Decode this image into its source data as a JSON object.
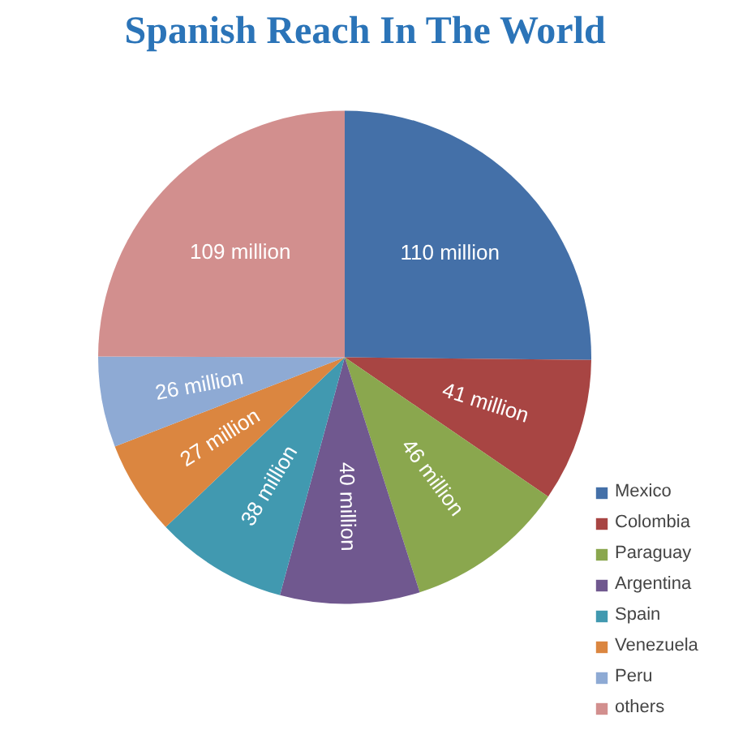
{
  "chart_data": {
    "type": "pie",
    "title": "Spanish Reach In The World",
    "categories": [
      "Mexico",
      "Colombia",
      "Paraguay",
      "Argentina",
      "Spain",
      "Venezuela",
      "Peru",
      "others"
    ],
    "values": [
      110,
      41,
      46,
      40,
      38,
      27,
      26,
      109
    ],
    "colors": [
      "#4470a8",
      "#a84543",
      "#8aa74e",
      "#70588f",
      "#4199b0",
      "#db8640",
      "#8eaad4",
      "#d28f8e"
    ],
    "value_labels": [
      "110 million",
      "41 million",
      "46 million",
      "40 million",
      "38 million",
      "27 million",
      "26 million",
      "109 million"
    ],
    "legend": "right"
  }
}
